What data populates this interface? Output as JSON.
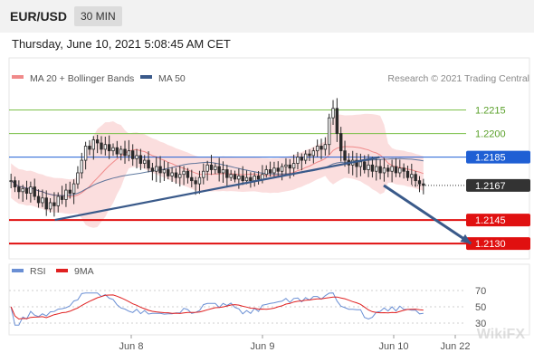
{
  "header": {
    "symbol": "EUR/USD",
    "timeframe": "30 MIN"
  },
  "datetime": "Thursday, June 10, 2021 5:08:45 AM CET",
  "watermark": "Research © 2021 Trading Central",
  "corner_mark": "WikiFX",
  "colors": {
    "bb": "#f08a8a",
    "ma50": "#3a5a8a",
    "green": "#7cc04a",
    "blue": "#1f5fd4",
    "red": "#e01010",
    "dark": "#333333",
    "rsi": "#6a8fd4",
    "ma9": "#e02020",
    "candle": "#2a2a2a"
  },
  "chart_data": [
    {
      "type": "candlestick",
      "legend": [
        {
          "name": "MA 20 + Bollinger Bands",
          "color": "#f08a8a"
        },
        {
          "name": "MA 50",
          "color": "#3a5a8a"
        }
      ],
      "x_tick_labels": [
        "Jun 8",
        "Jun 9",
        "Jun 10",
        "Jun 22"
      ],
      "ylim": [
        1.2122,
        1.2232
      ],
      "levels": [
        {
          "value": 1.2215,
          "label": "1.2215",
          "style": "resistance"
        },
        {
          "value": 1.22,
          "label": "1.2200",
          "style": "resistance"
        },
        {
          "value": 1.2185,
          "label": "1.2185",
          "style": "pivot"
        },
        {
          "value": 1.2167,
          "label": "1.2167",
          "style": "current"
        },
        {
          "value": 1.2145,
          "label": "1.2145",
          "style": "support"
        },
        {
          "value": 1.213,
          "label": "1.2130",
          "style": "support"
        }
      ],
      "trendline": [
        {
          "t": 0.11,
          "v": 1.2145
        },
        {
          "t": 0.89,
          "v": 1.2185
        }
      ],
      "forecast_arrow": [
        {
          "t": 0.9,
          "v": 1.2167
        },
        {
          "t": 0.99,
          "v": 1.213
        }
      ],
      "close": [
        1.217,
        1.2166,
        1.2163,
        1.2165,
        1.2162,
        1.2166,
        1.216,
        1.2156,
        1.2159,
        1.2152,
        1.2156,
        1.2154,
        1.216,
        1.2158,
        1.2164,
        1.2162,
        1.2168,
        1.2175,
        1.2183,
        1.2192,
        1.219,
        1.2196,
        1.2194,
        1.219,
        1.2193,
        1.2189,
        1.2191,
        1.2187,
        1.219,
        1.2186,
        1.2189,
        1.2184,
        1.2186,
        1.2181,
        1.2183,
        1.2178,
        1.2176,
        1.2179,
        1.2175,
        1.2177,
        1.2173,
        1.2175,
        1.2172,
        1.2174,
        1.2176,
        1.2172,
        1.217,
        1.2168,
        1.2172,
        1.2176,
        1.218,
        1.2177,
        1.2179,
        1.2175,
        1.2177,
        1.2172,
        1.2174,
        1.2171,
        1.2173,
        1.217,
        1.2172,
        1.217,
        1.2173,
        1.2171,
        1.2174,
        1.2177,
        1.2175,
        1.2178,
        1.2176,
        1.2179,
        1.218,
        1.2178,
        1.2181,
        1.2185,
        1.2183,
        1.2187,
        1.2186,
        1.2189,
        1.2192,
        1.219,
        1.2193,
        1.221,
        1.2216,
        1.22,
        1.2189,
        1.2183,
        1.218,
        1.2183,
        1.2179,
        1.2182,
        1.2177,
        1.218,
        1.2176,
        1.2179,
        1.2175,
        1.2178,
        1.2176,
        1.2179,
        1.2175,
        1.2178,
        1.2176,
        1.2172,
        1.2174,
        1.217,
        1.2168,
        1.2167
      ]
    },
    {
      "type": "line",
      "legend": [
        {
          "name": "RSI",
          "color": "#6a8fd4"
        },
        {
          "name": "9MA",
          "color": "#e02020"
        }
      ],
      "y_tick_labels": [
        "70",
        "50",
        "30"
      ],
      "ylim": [
        20,
        80
      ]
    }
  ]
}
